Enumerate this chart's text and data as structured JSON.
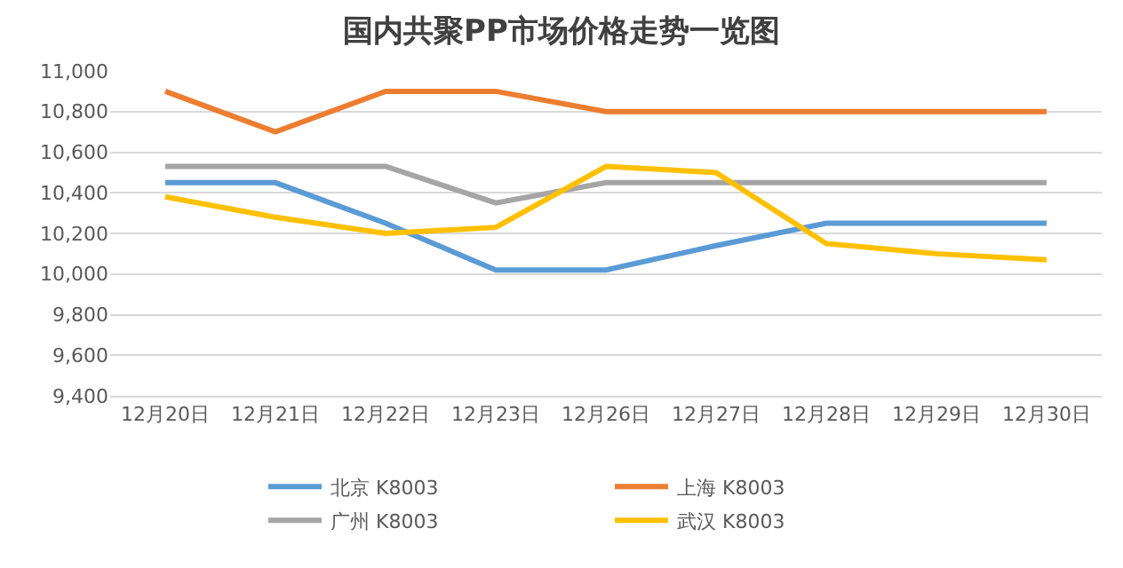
{
  "chart_data": {
    "type": "line",
    "title": "国内共聚PP市场价格走势一览图",
    "categories": [
      "12月20日",
      "12月21日",
      "12月22日",
      "12月23日",
      "12月26日",
      "12月27日",
      "12月28日",
      "12月29日",
      "12月30日"
    ],
    "series": [
      {
        "name": "北京 K8003",
        "color": "#5b9bd5",
        "values": [
          10450,
          10450,
          10250,
          10020,
          10020,
          10140,
          10250,
          10250,
          10250
        ]
      },
      {
        "name": "上海 K8003",
        "color": "#ed7d31",
        "values": [
          10900,
          10700,
          10900,
          10900,
          10800,
          10800,
          10800,
          10800,
          10800
        ]
      },
      {
        "name": "广州 K8003",
        "color": "#a5a5a5",
        "values": [
          10530,
          10530,
          10530,
          10350,
          10450,
          10450,
          10450,
          10450,
          10450
        ]
      },
      {
        "name": "武汉 K8003",
        "color": "#ffc000",
        "values": [
          10380,
          10280,
          10200,
          10230,
          10530,
          10500,
          10150,
          10100,
          10070
        ]
      }
    ],
    "ylim": [
      9400,
      11000
    ],
    "yticks": [
      {
        "value": 9400,
        "label": "9,400"
      },
      {
        "value": 9600,
        "label": "9,600"
      },
      {
        "value": 9800,
        "label": "9,800"
      },
      {
        "value": 10000,
        "label": "10,000"
      },
      {
        "value": 10200,
        "label": "10,200"
      },
      {
        "value": 10400,
        "label": "10,400"
      },
      {
        "value": 10600,
        "label": "10,600"
      },
      {
        "value": 10800,
        "label": "10,800"
      },
      {
        "value": 11000,
        "label": "11,000"
      }
    ],
    "grid": "y",
    "legend": "bottom",
    "marker": "none",
    "line_style": "solid"
  }
}
